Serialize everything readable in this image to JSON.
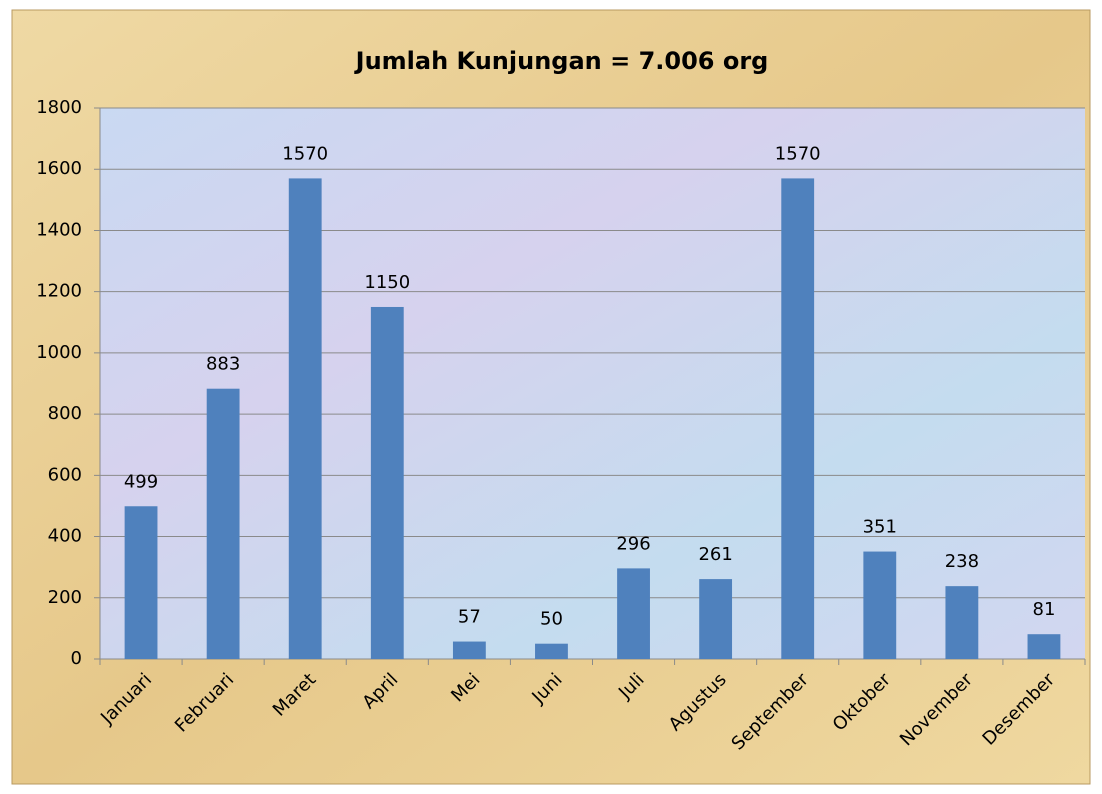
{
  "chart_data": {
    "type": "bar",
    "title": "Jumlah Kunjungan  =  7.006 org",
    "categories": [
      "Januari",
      "Februari",
      "Maret",
      "April",
      "Mei",
      "Juni",
      "Juli",
      "Agustus",
      "September",
      "Oktober",
      "November",
      "Desember"
    ],
    "values": [
      499,
      883,
      1570,
      1150,
      57,
      50,
      296,
      261,
      1570,
      351,
      238,
      81
    ],
    "color": "#4f81bd",
    "ylim": [
      0,
      1800
    ],
    "yticks": [
      0,
      200,
      400,
      600,
      800,
      1000,
      1200,
      1400,
      1600,
      1800
    ],
    "grid": true
  }
}
